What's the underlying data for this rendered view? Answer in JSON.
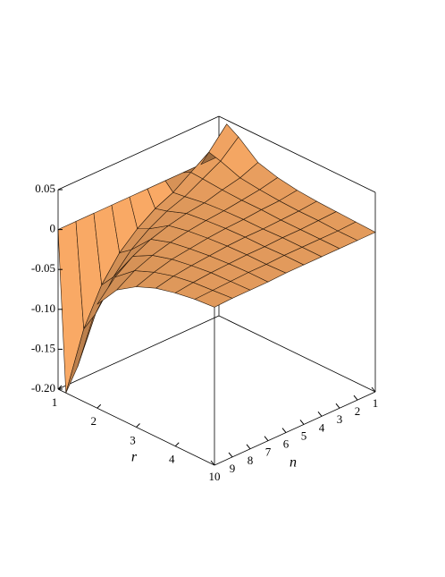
{
  "chart_data": {
    "type": "surface",
    "x_label": "r",
    "y_label": "n",
    "x": [
      1,
      1.2,
      1.5,
      2,
      2.5,
      3,
      3.5,
      4,
      4.5,
      5
    ],
    "y": [
      1,
      2,
      3,
      4,
      5,
      6,
      7,
      8,
      9,
      10
    ],
    "z": [
      [
        0,
        0.045,
        0.036,
        0.016,
        0.009,
        0.005,
        0.003,
        0.002,
        0.001,
        0
      ],
      [
        0,
        0.02,
        0.016,
        0.007,
        0.004,
        0.002,
        0.001,
        0.001,
        0,
        0
      ],
      [
        0,
        0.005,
        0.004,
        0.002,
        0.001,
        0.001,
        0,
        0,
        0,
        0
      ],
      [
        0,
        -0.01,
        -0.008,
        -0.004,
        -0.002,
        -0.001,
        -0.001,
        0,
        0,
        0
      ],
      [
        0,
        -0.02,
        -0.016,
        -0.007,
        -0.004,
        -0.002,
        -0.001,
        -0.001,
        0,
        0
      ],
      [
        0,
        -0.035,
        -0.028,
        -0.012,
        -0.007,
        -0.004,
        -0.002,
        -0.001,
        -0.001,
        0
      ],
      [
        0,
        -0.055,
        -0.044,
        -0.019,
        -0.011,
        -0.007,
        -0.004,
        -0.002,
        -0.001,
        -0.001
      ],
      [
        0,
        -0.085,
        -0.068,
        -0.03,
        -0.017,
        -0.01,
        -0.006,
        -0.003,
        -0.002,
        -0.001
      ],
      [
        0,
        -0.13,
        -0.104,
        -0.046,
        -0.026,
        -0.016,
        -0.009,
        -0.005,
        -0.003,
        -0.001
      ],
      [
        0,
        -0.2,
        -0.16,
        -0.07,
        -0.04,
        -0.024,
        -0.014,
        -0.008,
        -0.004,
        -0.002
      ]
    ],
    "xlim": [
      1,
      5
    ],
    "ylim": [
      1,
      10
    ],
    "zlim": [
      -0.2,
      0.05
    ],
    "xticks": [
      1,
      2,
      3,
      4
    ],
    "yticks": [
      1,
      2,
      3,
      4,
      5,
      6,
      7,
      8,
      9,
      10
    ],
    "zticks": [
      0.05,
      0,
      -0.05,
      {
        "value": -0.1,
        "label": "-0.10"
      },
      -0.15,
      {
        "value": -0.2,
        "label": "-0.20"
      }
    ],
    "color": "#e29a5c"
  }
}
